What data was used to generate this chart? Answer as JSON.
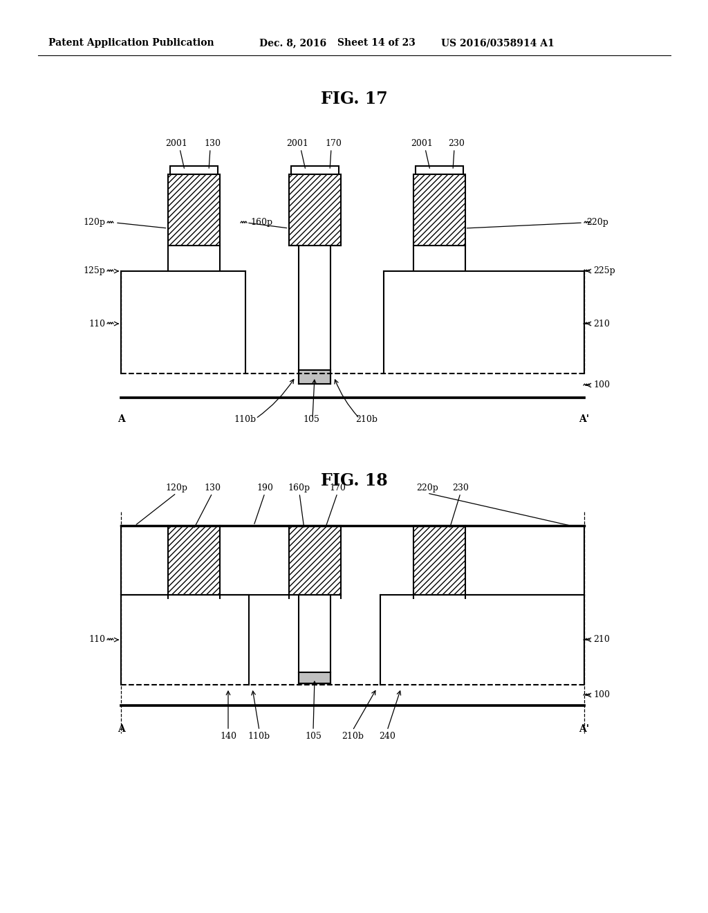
{
  "bg_color": "#ffffff",
  "lc": "#000000",
  "fig17_title": "FIG. 17",
  "fig18_title": "FIG. 18",
  "header_pub": "Patent Application Publication",
  "header_date": "Dec. 8, 2016",
  "header_sheet": "Sheet 14 of 23",
  "header_pat": "US 2016/0358914 A1"
}
